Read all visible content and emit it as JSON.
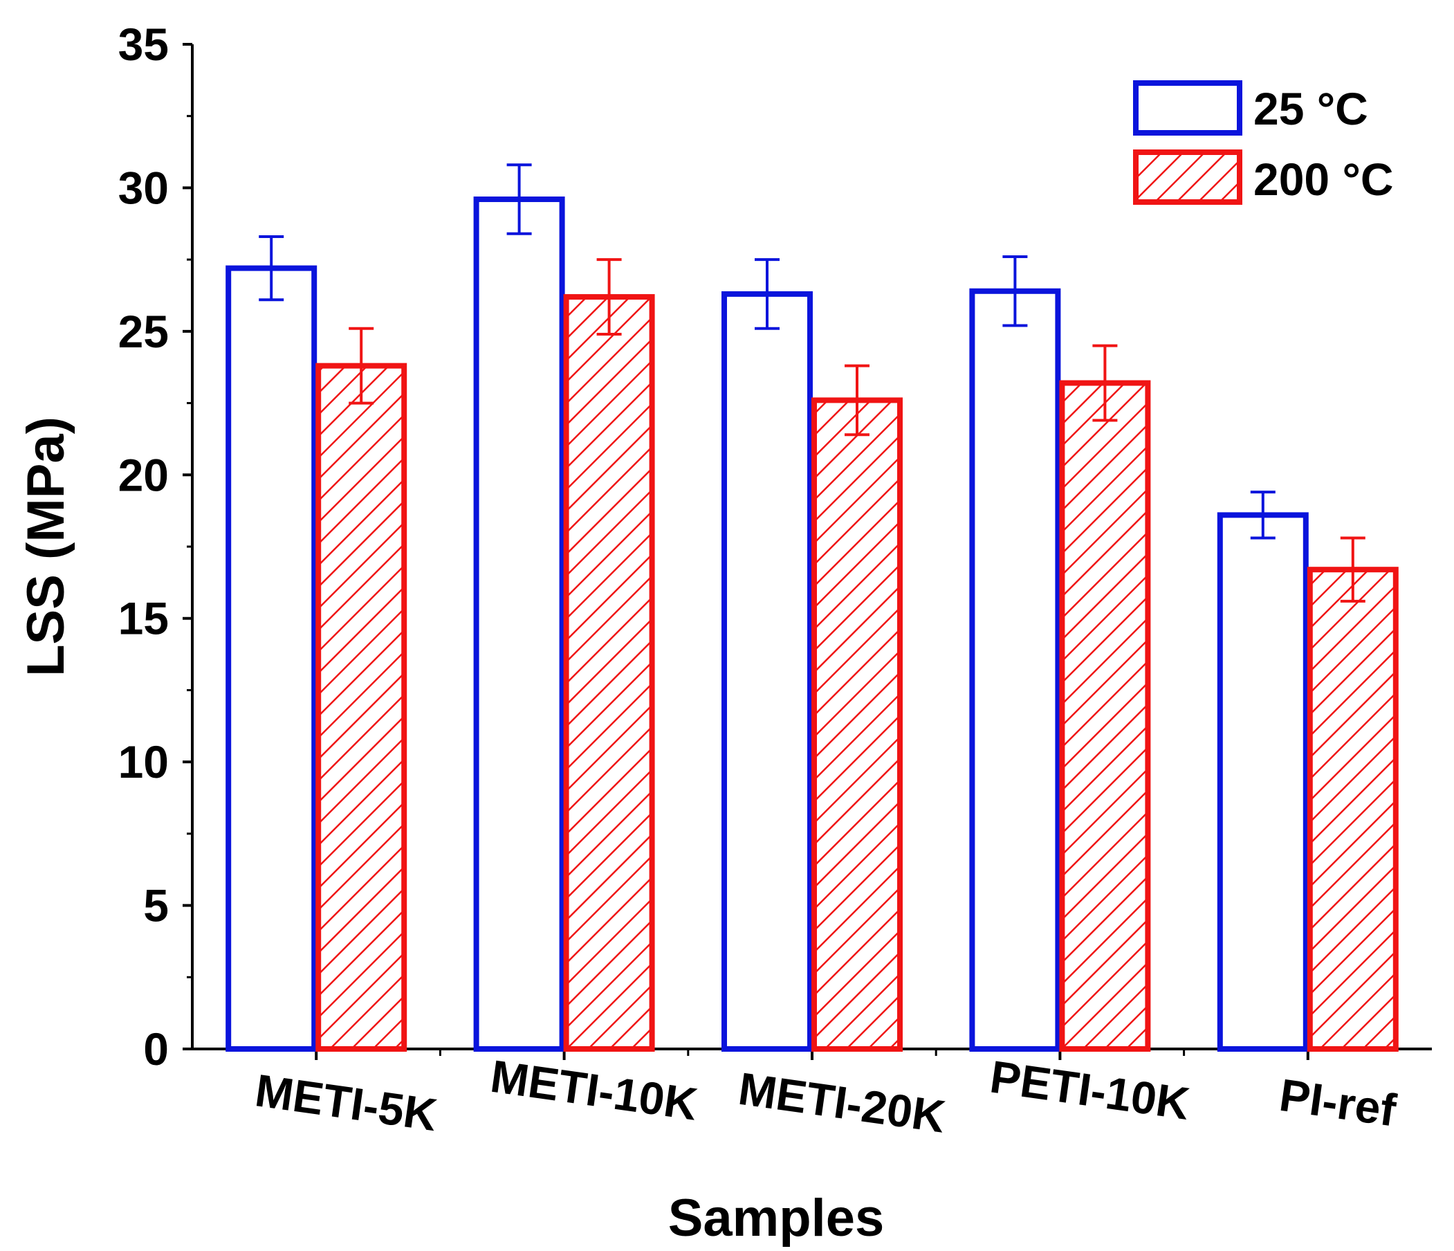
{
  "chart_data": {
    "type": "bar",
    "xlabel": "Samples",
    "ylabel": "LSS (MPa)",
    "ylim": [
      0,
      35
    ],
    "yticks": [
      "0",
      "5",
      "10",
      "15",
      "20",
      "25",
      "30",
      "35"
    ],
    "categories": [
      "METI-5K",
      "METI-10K",
      "METI-20K",
      "PETI-10K",
      "PI-ref"
    ],
    "series": [
      {
        "name": "25 °C",
        "color": "#0a14dc",
        "pattern": "none",
        "values": [
          27.2,
          29.6,
          26.3,
          26.4,
          18.6
        ],
        "errors": [
          1.1,
          1.2,
          1.2,
          1.2,
          0.8
        ]
      },
      {
        "name": "200 °C",
        "color": "#f01414",
        "pattern": "hatch",
        "values": [
          23.8,
          26.2,
          22.6,
          23.2,
          16.7
        ],
        "errors": [
          1.3,
          1.3,
          1.2,
          1.3,
          1.1
        ]
      }
    ],
    "legend_position": "top-right",
    "grid": false
  }
}
